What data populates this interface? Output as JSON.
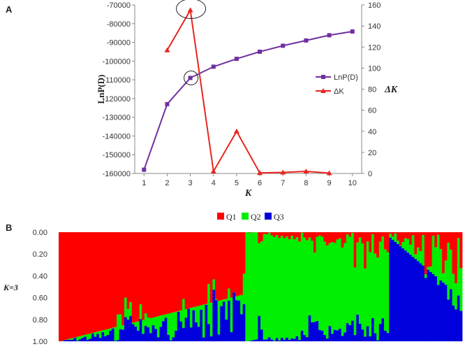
{
  "panels": {
    "a_label": "A",
    "b_label": "B"
  },
  "chart_data": [
    {
      "type": "line",
      "x": [
        1,
        2,
        3,
        4,
        5,
        6,
        7,
        8,
        9,
        10
      ],
      "xlabel": "K",
      "ylabel_left": "LnP(D)",
      "ylabel_right": "ΔK",
      "ylim_left": [
        -160000,
        -70000
      ],
      "ylim_right": [
        0,
        160
      ],
      "yticks_left": [
        "-70000",
        "-80000",
        "-90000",
        "-100000",
        "-110000",
        "-120000",
        "-130000",
        "-140000",
        "-150000",
        "-160000"
      ],
      "yticks_right": [
        "160",
        "140",
        "120",
        "100",
        "80",
        "60",
        "40",
        "20",
        "0"
      ],
      "xticks": [
        "1",
        "2",
        "3",
        "4",
        "5",
        "6",
        "7",
        "8",
        "9",
        "10"
      ],
      "series": [
        {
          "name": "LnP(D)",
          "axis": "left",
          "color": "#7030a0",
          "marker": "square",
          "x": [
            1,
            2,
            3,
            4,
            5,
            6,
            7,
            8,
            9,
            10
          ],
          "values": [
            -158000,
            -123000,
            -109000,
            -103000,
            -98800,
            -95000,
            -91800,
            -89000,
            -86200,
            -84200
          ]
        },
        {
          "name": "ΔK",
          "axis": "right",
          "color": "#e8251e",
          "marker": "triangle",
          "x": [
            2,
            3,
            4,
            5,
            6,
            7,
            8,
            9
          ],
          "values": [
            117,
            155,
            2,
            40,
            0.5,
            1,
            2,
            0.3
          ]
        }
      ],
      "highlights": [
        {
          "x": 3,
          "series": "ΔK"
        },
        {
          "x": 3,
          "series": "LnP(D)"
        }
      ],
      "legend_position": "right"
    },
    {
      "type": "stacked-bar",
      "row_label": "K=3",
      "yticks": [
        "0.00",
        "0.20",
        "0.40",
        "0.60",
        "0.80",
        "1.00"
      ],
      "legend_position": "top",
      "series": [
        {
          "name": "Q1",
          "color": "#ff0000"
        },
        {
          "name": "Q2",
          "color": "#00ee00"
        },
        {
          "name": "Q3",
          "color": "#0000dd"
        }
      ],
      "groups": [
        {
          "cluster": "Q1",
          "count": 74,
          "dominant_start": 1.0,
          "dominant_end": 0.57
        },
        {
          "cluster": "Q2",
          "count": 57,
          "dominant_start": 1.0,
          "dominant_end": 0.74
        },
        {
          "cluster": "Q3",
          "count": 29,
          "dominant_start": 0.95,
          "dominant_end": 0.4
        }
      ]
    }
  ]
}
